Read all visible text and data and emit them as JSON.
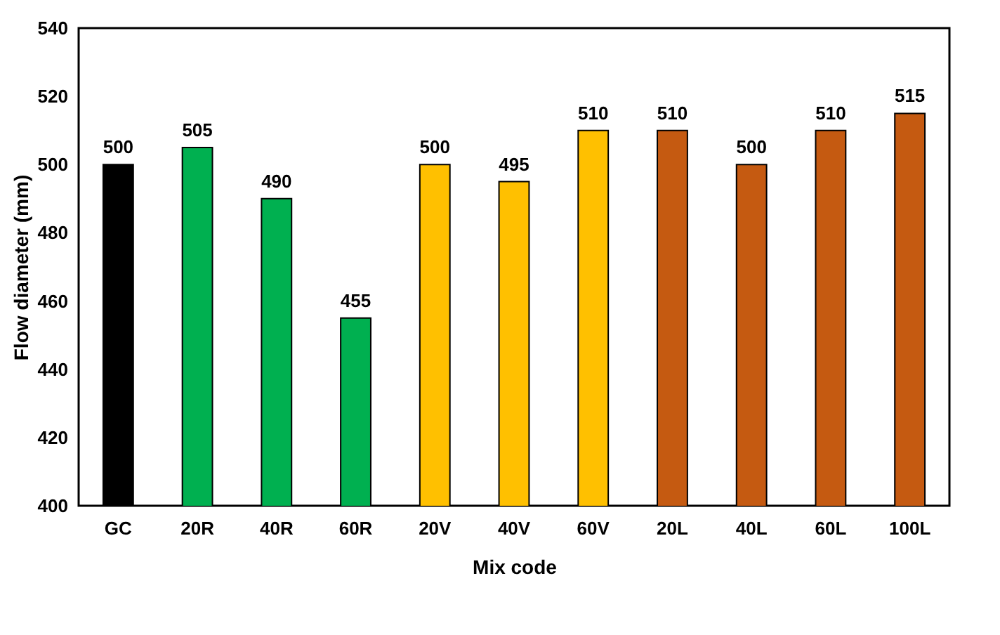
{
  "chart_data": {
    "type": "bar",
    "xlabel": "Mix code",
    "ylabel": "Flow diameter (mm)",
    "categories": [
      "GC",
      "20R",
      "40R",
      "60R",
      "20V",
      "40V",
      "60V",
      "20L",
      "40L",
      "60L",
      "100L"
    ],
    "values": [
      500,
      505,
      490,
      455,
      500,
      495,
      510,
      510,
      500,
      510,
      515
    ],
    "colors": [
      "#000000",
      "#00b050",
      "#00b050",
      "#00b050",
      "#ffc000",
      "#ffc000",
      "#ffc000",
      "#c55a11",
      "#c55a11",
      "#c55a11",
      "#c55a11"
    ],
    "ylim": [
      400,
      540
    ],
    "yticks": [
      400,
      420,
      440,
      460,
      480,
      500,
      520,
      540
    ],
    "grid": false,
    "data_labels": true
  }
}
